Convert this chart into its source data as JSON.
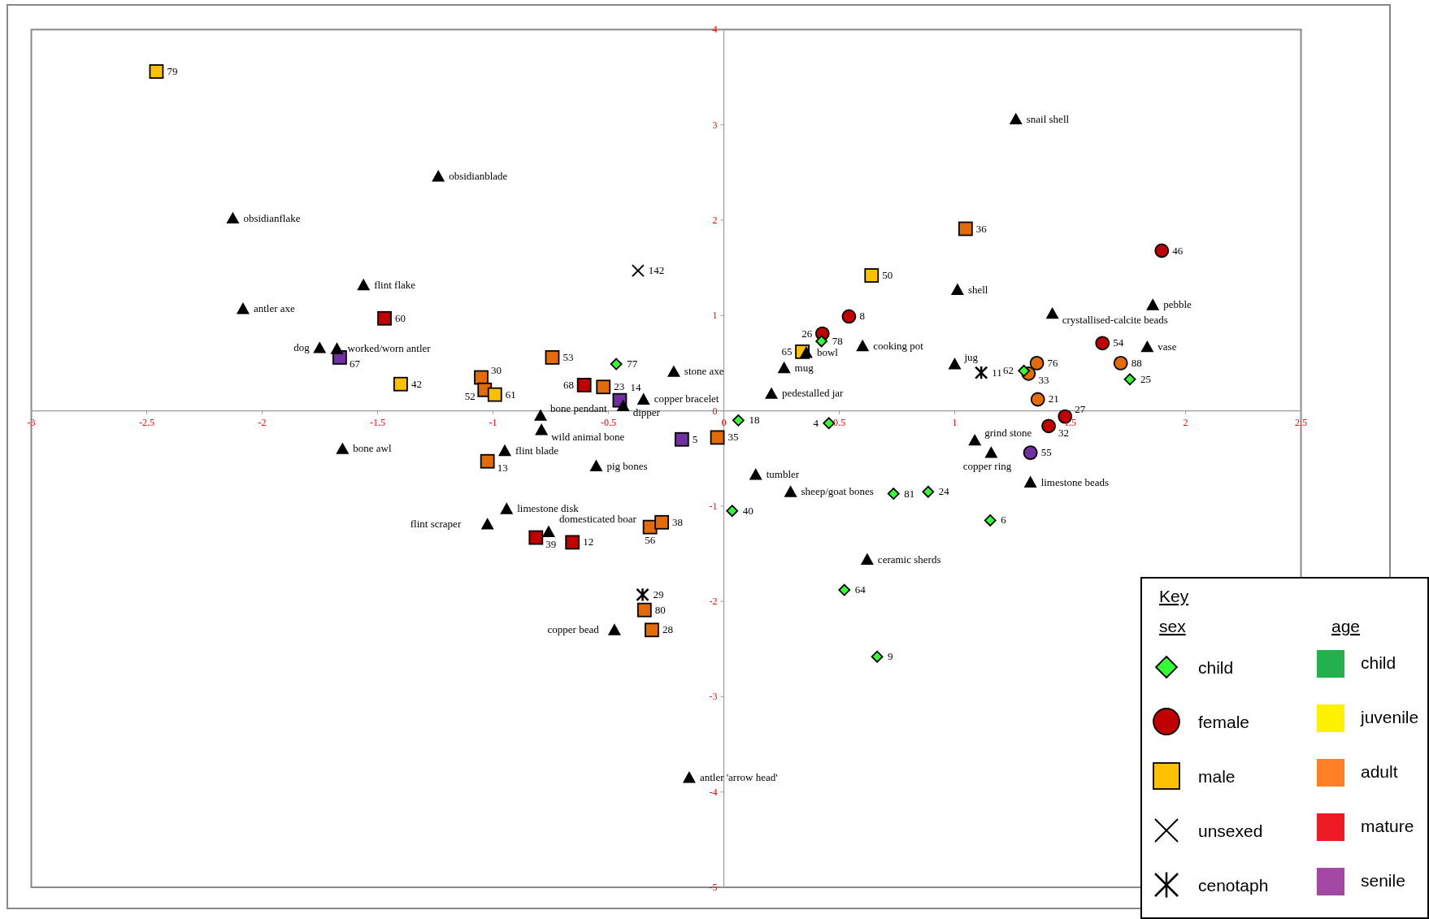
{
  "chart_data": {
    "type": "scatter",
    "xlim": [
      -3,
      2.5
    ],
    "ylim": [
      -5,
      4
    ],
    "xticks": [
      -3,
      -2.5,
      -2,
      -1.5,
      -1,
      -0.5,
      0,
      0.5,
      1,
      1.5,
      2,
      2.5
    ],
    "yticks": [
      -5,
      -4,
      -3,
      -2,
      -1,
      0,
      1,
      2,
      3,
      4
    ],
    "grid": false,
    "legend": "bottom right",
    "legend_title": "Key",
    "annotations": [
      "sex",
      "age",
      "child",
      "juvenile",
      "adult",
      "mature",
      "senile",
      {
        "text": "obsidianblade",
        "x": -1.237,
        "y": 2.46
      },
      {
        "text": "obsidianflake",
        "x": -2.127,
        "y": 2.02
      },
      {
        "text": "flint flake",
        "x": -1.561,
        "y": 1.32
      },
      {
        "text": "antler axe",
        "x": -2.083,
        "y": 1.07
      },
      {
        "text": "dog",
        "x": -1.751,
        "y": 0.66
      },
      {
        "text": "worked/worn antler",
        "x": -1.676,
        "y": 0.65
      },
      {
        "text": "bone awl",
        "x": -1.652,
        "y": -0.4
      },
      {
        "text": "flint blade",
        "x": -0.949,
        "y": -0.42
      },
      {
        "text": "limestone disk",
        "x": -0.941,
        "y": -1.03
      },
      {
        "text": "flint scraper",
        "x": -1.024,
        "y": -1.19
      },
      {
        "text": "domesticated boar",
        "x": -0.759,
        "y": -1.27
      },
      {
        "text": "bone pendant",
        "x": -0.794,
        "y": -0.05
      },
      {
        "text": "wild animal bone",
        "x": -0.79,
        "y": -0.2
      },
      {
        "text": "pig bones",
        "x": -0.553,
        "y": -0.58
      },
      {
        "text": "stone axe",
        "x": -0.217,
        "y": 0.41
      },
      {
        "text": "copper bracelet",
        "x": -0.348,
        "y": 0.12
      },
      {
        "text": "dipper",
        "x": -0.436,
        "y": 0.05
      },
      {
        "text": "copper bead",
        "x": -0.474,
        "y": -2.3
      },
      {
        "text": "antler 'arrow head'",
        "x": -0.15,
        "y": -3.85
      },
      {
        "text": "tumbler",
        "x": 0.138,
        "y": -0.67
      },
      {
        "text": "sheep/goat bones",
        "x": 0.289,
        "y": -0.85
      },
      {
        "text": "mug",
        "x": 0.261,
        "y": 0.45
      },
      {
        "text": "pedestalled jar",
        "x": 0.206,
        "y": 0.18
      },
      {
        "text": "bowl",
        "x": 0.357,
        "y": 0.61
      },
      {
        "text": "cooking pot",
        "x": 0.601,
        "y": 0.68
      },
      {
        "text": "ceramic sherds",
        "x": 0.621,
        "y": -1.56
      },
      {
        "text": "shell",
        "x": 1.012,
        "y": 1.27
      },
      {
        "text": "snail shell",
        "x": 1.265,
        "y": 3.06
      },
      {
        "text": "jug",
        "x": 1.0,
        "y": 0.49
      },
      {
        "text": "crystallised-calcite beads",
        "x": 1.423,
        "y": 1.02
      },
      {
        "text": "pebble",
        "x": 1.858,
        "y": 1.11
      },
      {
        "text": "vase",
        "x": 1.834,
        "y": 0.67
      },
      {
        "text": "grind stone",
        "x": 1.087,
        "y": -0.31
      },
      {
        "text": "copper ring",
        "x": 1.158,
        "y": -0.44
      },
      {
        "text": "limestone beads",
        "x": 1.328,
        "y": -0.75
      },
      {
        "text": "77",
        "x": -0.466,
        "y": 0.49
      },
      {
        "text": "18",
        "x": 0.063,
        "y": -0.1
      },
      {
        "text": "4",
        "x": 0.455,
        "y": -0.13
      },
      {
        "text": "40",
        "x": 0.036,
        "y": -1.05
      },
      {
        "text": "81",
        "x": 0.735,
        "y": -0.87
      },
      {
        "text": "24",
        "x": 0.885,
        "y": -0.85
      },
      {
        "text": "6",
        "x": 1.154,
        "y": -1.15
      },
      {
        "text": "64",
        "x": 0.522,
        "y": -1.88
      },
      {
        "text": "9",
        "x": 0.664,
        "y": -2.58
      },
      {
        "text": "78",
        "x": 0.423,
        "y": 0.73
      },
      {
        "text": "25",
        "x": 1.759,
        "y": 0.33
      },
      {
        "text": "62",
        "x": 1.3,
        "y": 0.42
      },
      {
        "text": "26",
        "x": 0.427,
        "y": 0.81
      },
      {
        "text": "8",
        "x": 0.542,
        "y": 0.99
      },
      {
        "text": "46",
        "x": 1.897,
        "y": 1.68
      },
      {
        "text": "54",
        "x": 1.64,
        "y": 0.71
      },
      {
        "text": "88",
        "x": 1.719,
        "y": 0.5
      },
      {
        "text": "76",
        "x": 1.356,
        "y": 0.5
      },
      {
        "text": "33",
        "x": 1.32,
        "y": 0.39
      },
      {
        "text": "21",
        "x": 1.36,
        "y": 0.12
      },
      {
        "text": "27",
        "x": 1.478,
        "y": -0.06
      },
      {
        "text": "32",
        "x": 1.407,
        "y": -0.16
      },
      {
        "text": "55",
        "x": 1.328,
        "y": -0.44
      },
      {
        "text": "79",
        "x": -2.458,
        "y": 3.56
      },
      {
        "text": "60",
        "x": -1.47,
        "y": 0.97
      },
      {
        "text": "67",
        "x": -1.664,
        "y": 0.56
      },
      {
        "text": "42",
        "x": -1.4,
        "y": 0.28
      },
      {
        "text": "30",
        "x": -1.051,
        "y": 0.35
      },
      {
        "text": "52",
        "x": -1.036,
        "y": 0.22
      },
      {
        "text": "61",
        "x": -0.992,
        "y": 0.17
      },
      {
        "text": "53",
        "x": -0.743,
        "y": 0.56
      },
      {
        "text": "68",
        "x": -0.605,
        "y": 0.27
      },
      {
        "text": "23",
        "x": -0.522,
        "y": 0.25
      },
      {
        "text": "14",
        "x": -0.451,
        "y": 0.11
      },
      {
        "text": "5",
        "x": -0.182,
        "y": -0.3
      },
      {
        "text": "35",
        "x": -0.028,
        "y": -0.28
      },
      {
        "text": "13",
        "x": -1.024,
        "y": -0.53
      },
      {
        "text": "39",
        "x": -0.814,
        "y": -1.33
      },
      {
        "text": "12",
        "x": -0.656,
        "y": -1.38
      },
      {
        "text": "56",
        "x": -0.32,
        "y": -1.22
      },
      {
        "text": "38",
        "x": -0.269,
        "y": -1.17
      },
      {
        "text": "80",
        "x": -0.344,
        "y": -2.09
      },
      {
        "text": "28",
        "x": -0.312,
        "y": -2.3
      },
      {
        "text": "65",
        "x": 0.34,
        "y": 0.62
      },
      {
        "text": "50",
        "x": 0.64,
        "y": 1.42
      },
      {
        "text": "36",
        "x": 1.047,
        "y": 1.91
      },
      {
        "text": "142",
        "x": -0.372,
        "y": 1.47
      },
      {
        "text": "29",
        "x": -0.352,
        "y": -1.93
      },
      {
        "text": "11",
        "x": 1.115,
        "y": 0.4
      }
    ],
    "series": [
      {
        "marker": "triangle",
        "color": "#000000",
        "x": [
          -1.237,
          -2.127,
          -1.561,
          -2.083,
          -1.751,
          -1.676,
          -1.652,
          -0.949,
          -0.941,
          -1.024,
          -0.759,
          -0.794,
          -0.79,
          -0.553,
          -0.217,
          -0.348,
          -0.436,
          -0.474,
          -0.15,
          0.138,
          0.289,
          0.261,
          0.206,
          0.357,
          0.601,
          0.621,
          1.012,
          1.265,
          1.0,
          1.423,
          1.858,
          1.834,
          1.087,
          1.158,
          1.328
        ],
        "values": [
          2.46,
          2.02,
          1.32,
          1.07,
          0.66,
          0.65,
          -0.4,
          -0.42,
          -1.03,
          -1.19,
          -1.27,
          -0.05,
          -0.2,
          -0.58,
          0.41,
          0.12,
          0.05,
          -2.3,
          -3.85,
          -0.67,
          -0.85,
          0.45,
          0.18,
          0.61,
          0.68,
          -1.56,
          1.27,
          3.06,
          0.49,
          1.02,
          1.11,
          0.67,
          -0.31,
          -0.44,
          -0.75
        ]
      },
      {
        "name": "child",
        "marker": "diamond",
        "color": "#33ff33",
        "x": [
          -0.466,
          0.063,
          0.455,
          0.036,
          0.735,
          0.885,
          1.154,
          0.522,
          0.664,
          0.423,
          1.759,
          1.3
        ],
        "values": [
          0.49,
          -0.1,
          -0.13,
          -1.05,
          -0.87,
          -0.85,
          -1.15,
          -1.88,
          -2.58,
          0.73,
          0.33,
          0.42
        ]
      },
      {
        "name": "female",
        "marker": "circle",
        "x": [
          0.427,
          0.542,
          1.897,
          1.64,
          1.719,
          1.356,
          1.32,
          1.36,
          1.478,
          1.407,
          1.328
        ],
        "values": [
          0.81,
          0.99,
          1.68,
          0.71,
          0.5,
          0.5,
          0.39,
          0.12,
          -0.06,
          -0.16,
          -0.44
        ],
        "colors": [
          "#c00000",
          "#c00000",
          "#c00000",
          "#c00000",
          "#e36c09",
          "#e36c09",
          "#e36c09",
          "#e36c09",
          "#c00000",
          "#c00000",
          "#7030a0"
        ]
      },
      {
        "name": "male",
        "marker": "square",
        "x": [
          -2.458,
          -1.47,
          -1.664,
          -1.4,
          -1.051,
          -1.036,
          -0.992,
          -0.743,
          -0.605,
          -0.522,
          -0.451,
          -0.182,
          -0.028,
          -1.024,
          -0.814,
          -0.656,
          -0.32,
          -0.269,
          -0.344,
          -0.312,
          0.34,
          0.64,
          1.047
        ],
        "values": [
          3.56,
          0.97,
          0.56,
          0.28,
          0.35,
          0.22,
          0.17,
          0.56,
          0.27,
          0.25,
          0.11,
          -0.3,
          -0.28,
          -0.53,
          -1.33,
          -1.38,
          -1.22,
          -1.17,
          -2.09,
          -2.3,
          0.62,
          1.42,
          1.91
        ],
        "colors": [
          "#ffc000",
          "#c00000",
          "#7030a0",
          "#ffc000",
          "#e36c09",
          "#e36c09",
          "#ffc000",
          "#e36c09",
          "#c00000",
          "#e36c09",
          "#7030a0",
          "#7030a0",
          "#e36c09",
          "#e36c09",
          "#c00000",
          "#c00000",
          "#e36c09",
          "#e36c09",
          "#e36c09",
          "#e36c09",
          "#ffc000",
          "#ffc000",
          "#e36c09"
        ]
      },
      {
        "name": "unsexed",
        "marker": "cross",
        "color": "#000000",
        "x": [
          -0.372
        ],
        "values": [
          1.47
        ]
      },
      {
        "name": "cenotaph",
        "color": "#000000",
        "x": [
          -0.352,
          1.115
        ],
        "values": [
          -1.93,
          0.4
        ]
      }
    ]
  }
}
